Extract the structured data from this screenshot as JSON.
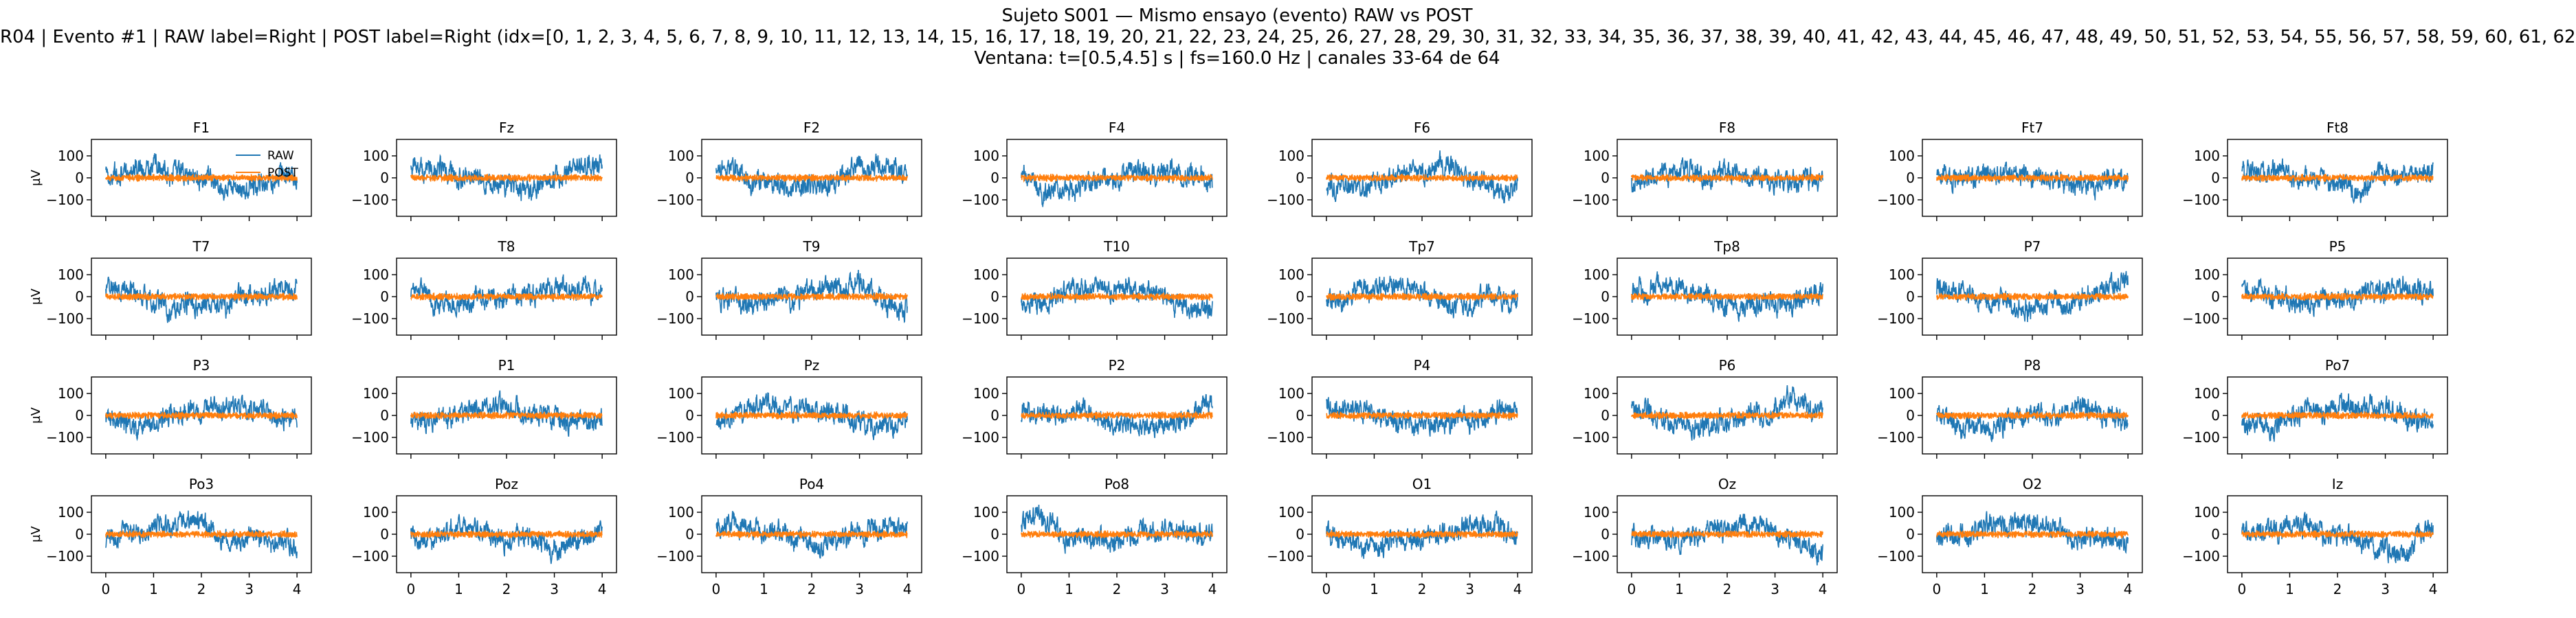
{
  "figure": {
    "title_lines": [
      "Sujeto S001 — Mismo ensayo (evento) RAW vs POST",
      "R04 | Evento #1 | RAW label=Right | POST label=Right (idx=[0, 1, 2, 3, 4, 5, 6, 7, 8, 9, 10, 11, 12, 13, 14, 15, 16, 17, 18, 19, 20, 21, 22, 23, 24, 25, 26, 27, 28, 29, 30, 31, 32, 33, 34, 35, 36, 37, 38, 39, 40, 41, 42, 43, 44, 45, 46, 47, 48, 49, 50, 51, 52, 53, 54, 55, 56, 57, 58, 59, 60, 61, 62",
      "Ventana: t=[0.5,4.5] s | fs=160.0 Hz | canales 33-64 de 64"
    ]
  },
  "chart_data": {
    "type": "line",
    "layout": "small-multiples 4x8",
    "ylabel": "µV",
    "xlabel": "",
    "xlim": [
      -0.3,
      4.3
    ],
    "ylim": [
      -175,
      175
    ],
    "xticks": [
      0,
      1,
      2,
      3,
      4
    ],
    "yticks": [
      -100,
      0,
      100
    ],
    "x_tick_labels_shown_on": "bottom row",
    "y_label_shown_on": "first column",
    "sampling_hz": 160,
    "x_range": [
      0,
      4
    ],
    "legend": {
      "placement": "upper-right of first panel",
      "entries": [
        "RAW",
        "POST"
      ]
    },
    "series": [
      {
        "name": "RAW",
        "color": "#1f77b4",
        "amplitude_uV": 80
      },
      {
        "name": "POST",
        "color": "#ff7f0e",
        "amplitude_uV": 20
      }
    ],
    "channels": [
      "F1",
      "Fz",
      "F2",
      "F4",
      "F6",
      "F8",
      "Ft7",
      "Ft8",
      "T7",
      "T8",
      "T9",
      "T10",
      "Tp7",
      "Tp8",
      "P7",
      "P5",
      "P3",
      "P1",
      "Pz",
      "P2",
      "P4",
      "P6",
      "P8",
      "Po7",
      "Po3",
      "Poz",
      "Po4",
      "Po8",
      "O1",
      "Oz",
      "O2",
      "Iz"
    ]
  }
}
